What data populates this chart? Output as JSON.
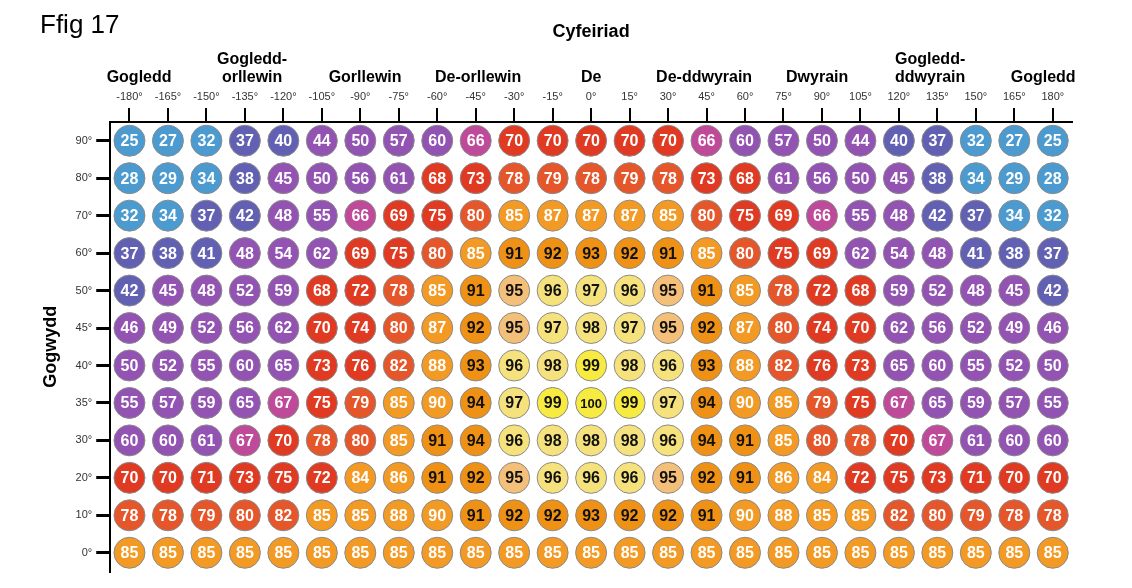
{
  "chart_data": {
    "type": "heatmap",
    "title": "Ffig 17",
    "xlabel": "Cyfeiriad",
    "ylabel": "Gogwydd",
    "categories": [
      "-180°",
      "-165°",
      "-150°",
      "-135°",
      "-120°",
      "-105°",
      "-90°",
      "-75°",
      "-60°",
      "-45°",
      "-30°",
      "-15°",
      "0°",
      "15°",
      "30°",
      "45°",
      "60°",
      "75°",
      "90°",
      "105°",
      "120°",
      "135°",
      "150°",
      "165°",
      "180°"
    ],
    "y_categories": [
      "90°",
      "80°",
      "70°",
      "60°",
      "50°",
      "45°",
      "40°",
      "35°",
      "30°",
      "20°",
      "10°",
      "0°"
    ],
    "cells": [
      [
        25,
        27,
        32,
        37,
        40,
        44,
        50,
        57,
        60,
        66,
        70,
        70,
        70,
        70,
        70,
        66,
        60,
        57,
        50,
        44,
        40,
        37,
        32,
        27,
        25
      ],
      [
        28,
        29,
        34,
        38,
        45,
        50,
        56,
        61,
        68,
        73,
        78,
        79,
        78,
        79,
        78,
        73,
        68,
        61,
        56,
        50,
        45,
        38,
        34,
        29,
        28
      ],
      [
        32,
        34,
        37,
        42,
        48,
        55,
        66,
        69,
        75,
        80,
        85,
        87,
        87,
        87,
        85,
        80,
        75,
        69,
        66,
        55,
        48,
        42,
        37,
        34,
        32
      ],
      [
        37,
        38,
        41,
        48,
        54,
        62,
        69,
        75,
        80,
        85,
        91,
        92,
        93,
        92,
        91,
        85,
        80,
        75,
        69,
        62,
        54,
        48,
        41,
        38,
        37
      ],
      [
        42,
        45,
        48,
        52,
        59,
        68,
        72,
        78,
        85,
        91,
        95,
        96,
        97,
        96,
        95,
        91,
        85,
        78,
        72,
        68,
        59,
        52,
        48,
        45,
        42
      ],
      [
        46,
        49,
        52,
        56,
        62,
        70,
        74,
        80,
        87,
        92,
        95,
        97,
        98,
        97,
        95,
        92,
        87,
        80,
        74,
        70,
        62,
        56,
        52,
        49,
        46
      ],
      [
        50,
        52,
        55,
        60,
        65,
        73,
        76,
        82,
        88,
        93,
        96,
        98,
        99,
        98,
        96,
        93,
        88,
        82,
        76,
        73,
        65,
        60,
        55,
        52,
        50
      ],
      [
        55,
        57,
        59,
        65,
        67,
        75,
        79,
        85,
        90,
        94,
        97,
        99,
        100,
        99,
        97,
        94,
        90,
        85,
        79,
        75,
        67,
        65,
        59,
        57,
        55
      ],
      [
        60,
        60,
        61,
        67,
        70,
        78,
        80,
        85,
        91,
        94,
        96,
        98,
        98,
        98,
        96,
        94,
        91,
        85,
        80,
        78,
        70,
        67,
        61,
        60,
        60
      ],
      [
        70,
        70,
        71,
        73,
        75,
        72,
        84,
        86,
        91,
        92,
        95,
        96,
        96,
        96,
        95,
        92,
        91,
        86,
        84,
        72,
        75,
        73,
        71,
        70,
        70
      ],
      [
        78,
        78,
        79,
        80,
        82,
        85,
        85,
        88,
        90,
        91,
        92,
        92,
        93,
        92,
        92,
        91,
        90,
        88,
        85,
        85,
        82,
        80,
        79,
        78,
        78
      ],
      [
        85,
        85,
        85,
        85,
        85,
        85,
        85,
        85,
        85,
        85,
        85,
        85,
        85,
        85,
        85,
        85,
        85,
        85,
        85,
        85,
        85,
        85,
        85,
        85,
        85
      ]
    ],
    "data_labels": true,
    "annotations": [
      "Gogledd",
      "Gogledd-orllewin",
      "Gorllewin",
      "De-orllewin",
      "De",
      "De-ddwyrain",
      "Dwyrain",
      "Gogledd-ddwyrain",
      "Gogledd"
    ]
  }
}
